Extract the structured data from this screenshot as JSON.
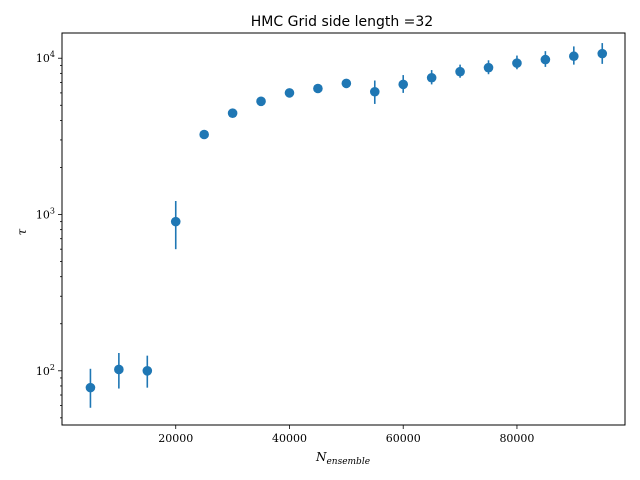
{
  "chart_data": {
    "type": "scatter",
    "title": "HMC Grid side length =32",
    "xlabel": "N_ensemble",
    "xlabel_main": "N",
    "xlabel_sub": "ensemble",
    "ylabel": "τ",
    "y_scale": "log",
    "xlim": [
      0,
      99000
    ],
    "ylim": [
      45,
      14500
    ],
    "xticks": [
      20000,
      40000,
      60000,
      80000
    ],
    "xtick_labels": [
      "20000",
      "40000",
      "60000",
      "80000"
    ],
    "yticks": [
      100,
      1000,
      10000
    ],
    "ytick_labels": [
      "10²",
      "10³",
      "10⁴"
    ],
    "ytick_base": [
      "10",
      "10",
      "10"
    ],
    "ytick_exp": [
      "2",
      "3",
      "4"
    ],
    "color": "#1f77b4",
    "grid": false,
    "points": [
      {
        "x": 5000,
        "y": 78,
        "err_low": 58,
        "err_high": 103
      },
      {
        "x": 10000,
        "y": 102,
        "err_low": 77,
        "err_high": 130
      },
      {
        "x": 15000,
        "y": 100,
        "err_low": 78,
        "err_high": 125
      },
      {
        "x": 20000,
        "y": 900,
        "err_low": 600,
        "err_high": 1220
      },
      {
        "x": 25000,
        "y": 3250,
        "err_low": 3150,
        "err_high": 3350
      },
      {
        "x": 30000,
        "y": 4450,
        "err_low": 4300,
        "err_high": 4600
      },
      {
        "x": 35000,
        "y": 5300,
        "err_low": 5100,
        "err_high": 5500
      },
      {
        "x": 40000,
        "y": 6000,
        "err_low": 5800,
        "err_high": 6200
      },
      {
        "x": 45000,
        "y": 6400,
        "err_low": 6200,
        "err_high": 6600
      },
      {
        "x": 50000,
        "y": 6900,
        "err_low": 6650,
        "err_high": 7150
      },
      {
        "x": 55000,
        "y": 6100,
        "err_low": 5100,
        "err_high": 7200
      },
      {
        "x": 60000,
        "y": 6800,
        "err_low": 6000,
        "err_high": 7800
      },
      {
        "x": 65000,
        "y": 7500,
        "err_low": 6800,
        "err_high": 8400
      },
      {
        "x": 70000,
        "y": 8200,
        "err_low": 7500,
        "err_high": 9100
      },
      {
        "x": 75000,
        "y": 8700,
        "err_low": 7900,
        "err_high": 9700
      },
      {
        "x": 80000,
        "y": 9300,
        "err_low": 8500,
        "err_high": 10400
      },
      {
        "x": 85000,
        "y": 9800,
        "err_low": 8800,
        "err_high": 11100
      },
      {
        "x": 90000,
        "y": 10300,
        "err_low": 9100,
        "err_high": 11900
      },
      {
        "x": 95000,
        "y": 10700,
        "err_low": 9200,
        "err_high": 12500
      }
    ]
  }
}
